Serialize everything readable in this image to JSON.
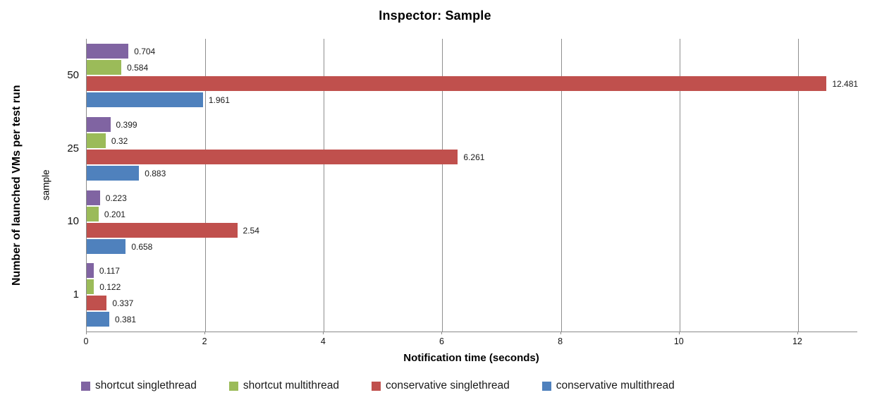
{
  "chart_data": {
    "type": "bar",
    "orientation": "horizontal",
    "title": "Inspector: Sample",
    "xlabel": "Notification time (seconds)",
    "ylabel_outer": "Number of launched VMs per test run",
    "ylabel_inner": "sample",
    "categories": [
      "50",
      "25",
      "10",
      "1"
    ],
    "series": [
      {
        "name": "shortcut singlethread",
        "color": "#8064A2",
        "values": [
          0.704,
          0.399,
          0.223,
          0.117
        ],
        "labels": [
          "0.704",
          "0.399",
          "0.223",
          "0.117"
        ]
      },
      {
        "name": "shortcut multithread",
        "color": "#9BBB59",
        "values": [
          0.584,
          0.32,
          0.201,
          0.122
        ],
        "labels": [
          "0.584",
          "0.32",
          "0.201",
          "0.122"
        ]
      },
      {
        "name": "conservative singlethread",
        "color": "#C0504D",
        "values": [
          12.481,
          6.261,
          2.54,
          0.337
        ],
        "labels": [
          "12.481",
          "6.261",
          "2.54",
          "0.337"
        ]
      },
      {
        "name": "conservative multithread",
        "color": "#4F81BD",
        "values": [
          1.961,
          0.883,
          0.658,
          0.381
        ],
        "labels": [
          "1.961",
          "0.883",
          "0.658",
          "0.381"
        ]
      }
    ],
    "xticks": [
      0,
      2,
      4,
      6,
      8,
      10,
      12
    ],
    "xlim": [
      0,
      13
    ],
    "grid": true,
    "gridline_color": "#8f8f8f",
    "legend_position": "bottom"
  }
}
